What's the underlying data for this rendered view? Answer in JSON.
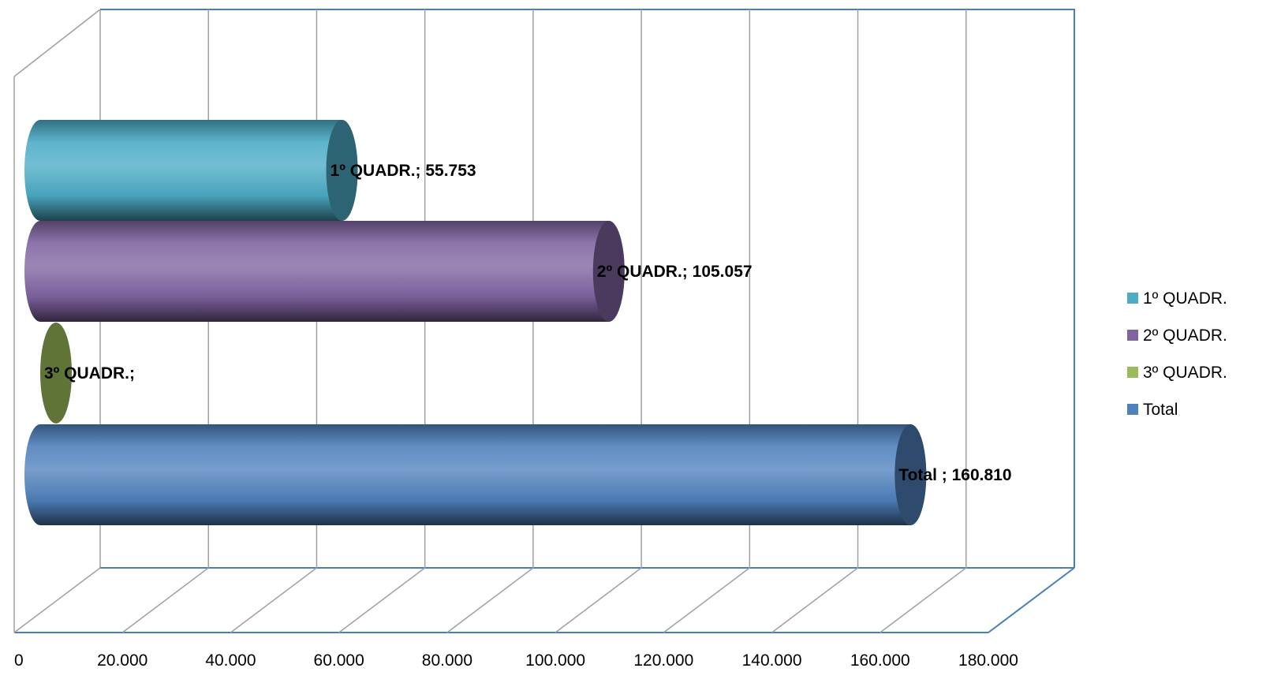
{
  "chart_data": {
    "type": "bar",
    "orientation": "horizontal",
    "style": "3d-cylinder",
    "xlim": [
      0,
      180000
    ],
    "x_ticks": [
      0,
      20000,
      40000,
      60000,
      80000,
      100000,
      120000,
      140000,
      160000,
      180000
    ],
    "x_tick_labels": [
      "0",
      "20.000",
      "40.000",
      "60.000",
      "80.000",
      "100.000",
      "120.000",
      "140.000",
      "160.000",
      "180.000"
    ],
    "grid": true,
    "legend_position": "right",
    "series": [
      {
        "name": "1º QUADR.",
        "value": 55753,
        "label": "1º QUADR.; 55.753",
        "color": "#4BACC6"
      },
      {
        "name": "2º QUADR.",
        "value": 105057,
        "label": "2º QUADR.; 105.057",
        "color": "#8064A2"
      },
      {
        "name": "3º QUADR.",
        "value": 0,
        "label": "3º QUADR.;",
        "color": "#9BBB59"
      },
      {
        "name": "Total",
        "value": 160810,
        "label": "Total ; 160.810",
        "color": "#4F81BD"
      }
    ]
  }
}
